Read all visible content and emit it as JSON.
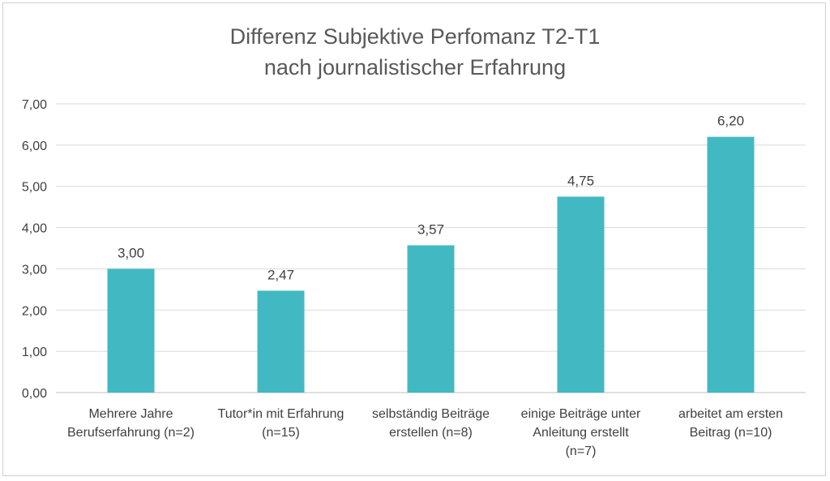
{
  "chart_data": {
    "type": "bar",
    "title_lines": [
      "Differenz Subjektive Perfomanz T2-T1",
      "nach journalistischer Erfahrung"
    ],
    "categories": [
      "Mehrere Jahre Berufserfahrung (n=2)",
      "Tutor*in mit Erfahrung (n=15)",
      "selbständig Beiträge erstellen (n=8)",
      "einige Beiträge unter Anleitung erstellt (n=7)",
      "arbeitet am ersten Beitrag (n=10)"
    ],
    "category_lines": [
      [
        "Mehrere Jahre",
        "Berufserfahrung (n=2)"
      ],
      [
        "Tutor*in mit Erfahrung",
        "(n=15)"
      ],
      [
        "selbständig Beiträge",
        "erstellen (n=8)"
      ],
      [
        "einige Beiträge unter",
        "Anleitung erstellt",
        "(n=7)"
      ],
      [
        "arbeitet am ersten",
        "Beitrag (n=10)"
      ]
    ],
    "values": [
      3.0,
      2.47,
      3.57,
      4.75,
      6.2
    ],
    "data_labels": [
      "3,00",
      "2,47",
      "3,57",
      "4,75",
      "6,20"
    ],
    "yticks": [
      0,
      1,
      2,
      3,
      4,
      5,
      6,
      7
    ],
    "ytick_labels": [
      "0,00",
      "1,00",
      "2,00",
      "3,00",
      "4,00",
      "5,00",
      "6,00",
      "7,00"
    ],
    "ylim": [
      0,
      7
    ],
    "grid": true,
    "legend": "none",
    "bar_color": "#42B9C2"
  }
}
